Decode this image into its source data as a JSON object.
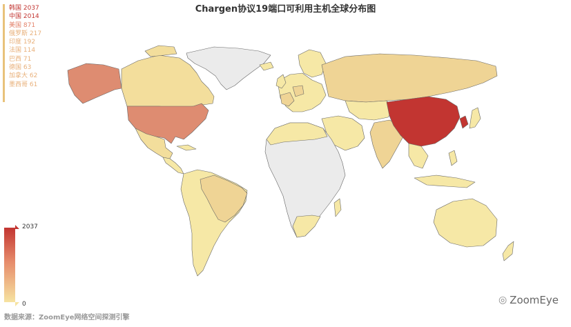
{
  "title": "Chargen协议19端口可利用主机全球分布图",
  "legend": [
    {
      "label": "韩国 2037",
      "color": "#c23531"
    },
    {
      "label": "中国 2014",
      "color": "#c23531"
    },
    {
      "label": "美国 871",
      "color": "#e3826a"
    },
    {
      "label": "俄罗斯 217",
      "color": "#e8b07a"
    },
    {
      "label": "印度 192",
      "color": "#e8b07a"
    },
    {
      "label": "法国 114",
      "color": "#e8b07a"
    },
    {
      "label": "巴西 71",
      "color": "#e8b07a"
    },
    {
      "label": "德国 63",
      "color": "#e8b07a"
    },
    {
      "label": "加拿大 62",
      "color": "#e8b07a"
    },
    {
      "label": "墨西哥 61",
      "color": "#e8b07a"
    }
  ],
  "visual_map": {
    "max": "2037",
    "min": "0",
    "high_color": "#c23531",
    "low_color": "#f6e3a1"
  },
  "source": "数据来源：ZoomEye网络空间探测引擎",
  "watermark": "ZoomEye",
  "colors": {
    "no_data": "#ebebeb",
    "low": "#f6e8a6",
    "mid": "#efd495",
    "usa": "#de8c71",
    "china": "#c23531",
    "border": "#555555"
  }
}
